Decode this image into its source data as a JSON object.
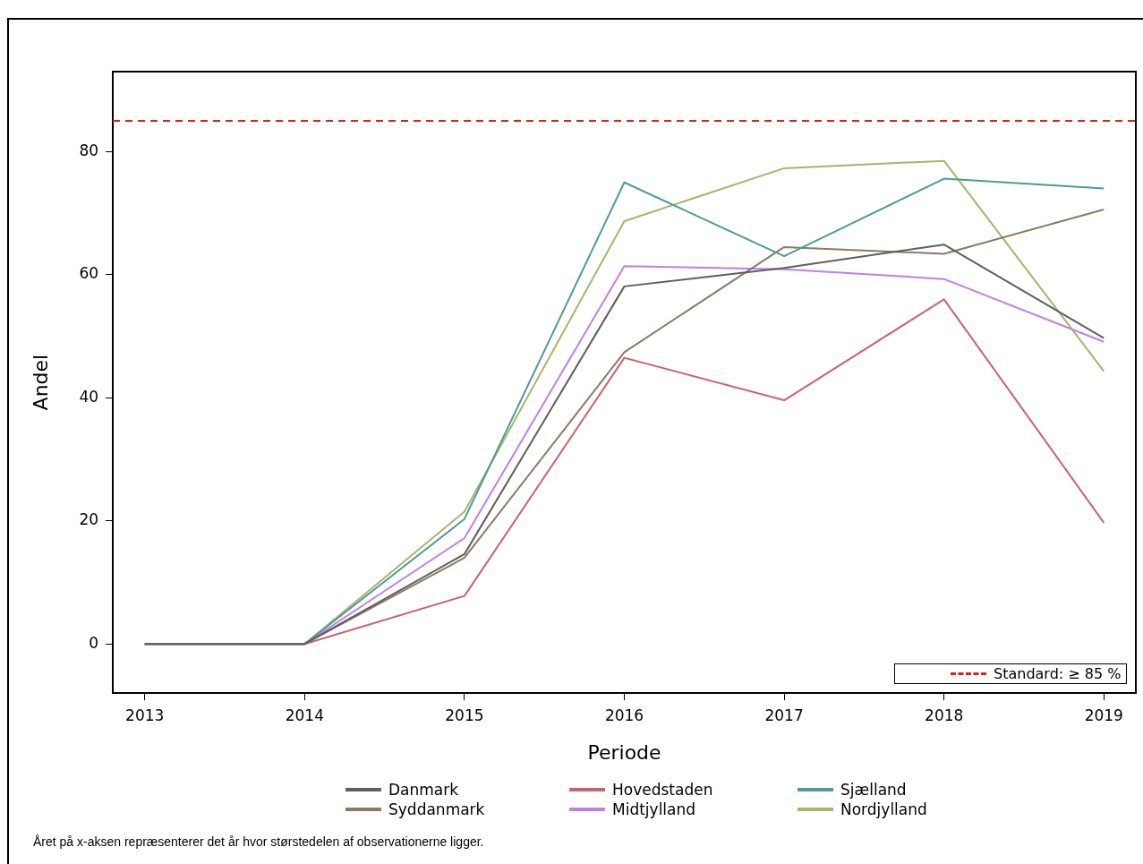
{
  "chart_data": {
    "type": "line",
    "xlabel": "Periode",
    "ylabel": "Andel",
    "x": [
      2013,
      2014,
      2015,
      2016,
      2017,
      2018,
      2019
    ],
    "series": [
      {
        "name": "Danmark",
        "color": "#5f5f5f",
        "values": [
          0,
          0,
          14.6,
          58.1,
          61.1,
          64.9,
          49.7
        ]
      },
      {
        "name": "Hovedstaden",
        "color": "#c8646e",
        "values": [
          0,
          0,
          7.8,
          46.5,
          39.6,
          56.0,
          19.7
        ]
      },
      {
        "name": "Sjælland",
        "color": "#4f9a98",
        "values": [
          0,
          0,
          20.3,
          75.0,
          63.0,
          75.6,
          74.0
        ]
      },
      {
        "name": "Syddanmark",
        "color": "#8c7a63",
        "values": [
          0,
          0,
          14.0,
          47.4,
          64.5,
          63.4,
          70.6
        ]
      },
      {
        "name": "Midtjylland",
        "color": "#bf7fe8",
        "values": [
          0,
          0,
          17.2,
          61.4,
          60.9,
          59.3,
          49.1
        ]
      },
      {
        "name": "Nordjylland",
        "color": "#a8b46a",
        "values": [
          0,
          0,
          21.5,
          68.7,
          77.3,
          78.5,
          44.3
        ]
      }
    ],
    "xlim": [
      2012.8,
      2019.2
    ],
    "xticks": [
      2013,
      2014,
      2015,
      2016,
      2017,
      2018,
      2019
    ],
    "ylim": [
      -8,
      93
    ],
    "yticks": [
      0,
      20,
      40,
      60,
      80
    ],
    "ref_lines": [
      {
        "axis": "y",
        "value": 85,
        "label": "Standard: ≥ 85 %",
        "color": "#e0201b",
        "line_style": "dashed"
      }
    ],
    "grid": false,
    "legend": "bottom",
    "marker": "none",
    "line_style": "solid",
    "annotations": [
      "Året på x-aksen repræsenterer det år hvor størstedelen af observationerne ligger."
    ]
  }
}
